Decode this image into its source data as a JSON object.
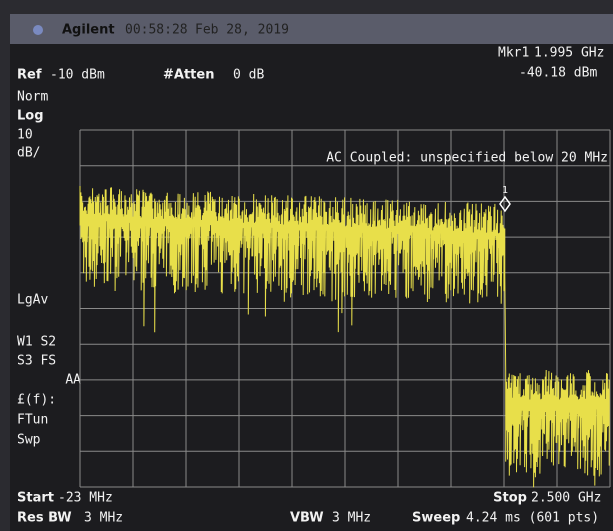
{
  "header": {
    "brand": "Agilent",
    "time": "00:58:28",
    "date": "Feb 28, 2019"
  },
  "marker": {
    "label": "Mkr1",
    "frequency": "1.995 GHz",
    "level": "-40.18 dBm",
    "id": "1"
  },
  "settings": {
    "ref_label": "Ref",
    "ref_value": "-10 dBm",
    "atten_label": "#Atten",
    "atten_value": "0 dB"
  },
  "side_labels": [
    "Norm",
    "Log",
    "10",
    "dB/",
    "LgAv",
    "W1  S2",
    "S3  FS",
    "AA",
    "£(f):",
    "FTun",
    "Swp"
  ],
  "annotation": "AC Coupled: unspecified below 20 MHz",
  "footer": {
    "start_label": "Start",
    "start_value": "-23 MHz",
    "stop_label": "Stop",
    "stop_value": "2.500 GHz",
    "rbw_label": "Res BW",
    "rbw_value": "3 MHz",
    "vbw_label": "VBW",
    "vbw_value": "3 MHz",
    "sweep_label": "Sweep",
    "sweep_value": "4.24 ms (601 pts)"
  }
}
